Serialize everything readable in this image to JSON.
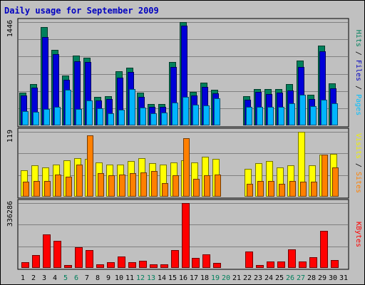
{
  "chart_data": {
    "type": "bar",
    "title": "Daily usage for September 2009",
    "grid": true,
    "categories": [
      "1",
      "2",
      "3",
      "4",
      "5",
      "6",
      "7",
      "8",
      "9",
      "10",
      "11",
      "12",
      "13",
      "14",
      "15",
      "16",
      "17",
      "18",
      "19",
      "20",
      "21",
      "22",
      "23",
      "24",
      "25",
      "26",
      "27",
      "28",
      "29",
      "30",
      "31"
    ],
    "weekend_days": [
      5,
      6,
      12,
      13,
      19,
      20,
      26,
      27
    ],
    "panels": [
      {
        "id": "hits",
        "y_max_label": "1446",
        "ymax": 1446,
        "right_labels": [
          {
            "text": "Hits",
            "color": "#00805c"
          },
          {
            "text": " / ",
            "color": "#000000"
          },
          {
            "text": "Files",
            "color": "#0000c0"
          },
          {
            "text": " / ",
            "color": "#000000"
          },
          {
            "text": "Pages",
            "color": "#00c0ff"
          }
        ],
        "series": [
          {
            "name": "Hits",
            "color": "#00805c",
            "values": [
              455,
              574,
              1376,
              1059,
              695,
              976,
              949,
              396,
              411,
              756,
              808,
              457,
              296,
              302,
              885,
              1446,
              472,
              595,
              499,
              0,
              0,
              406,
              513,
              506,
              513,
              581,
              911,
              424,
              1115,
              590,
              0
            ]
          },
          {
            "name": "Files",
            "color": "#0000d8",
            "values": [
              415,
              532,
              1240,
              996,
              637,
              901,
              892,
              349,
              369,
              672,
              751,
              402,
              258,
              263,
              821,
              1398,
              420,
              539,
              446,
              0,
              0,
              358,
              466,
              435,
              455,
              489,
              820,
              373,
              1039,
              514,
              0
            ]
          },
          {
            "name": "Pages",
            "color": "#00b4ff",
            "values": [
              196,
              193,
              226,
              257,
              500,
              226,
              349,
              236,
              170,
              223,
              512,
              254,
              173,
              182,
              315,
              400,
              288,
              276,
              377,
              0,
              0,
              264,
              263,
              264,
              264,
              311,
              424,
              272,
              360,
              314,
              0
            ]
          }
        ]
      },
      {
        "id": "visits",
        "y_max_label": "119",
        "ymax": 119,
        "right_labels": [
          {
            "text": "Visits",
            "color": "#f0f000"
          },
          {
            "text": " / ",
            "color": "#000000"
          },
          {
            "text": "Sites",
            "color": "#ff8000"
          }
        ],
        "series": [
          {
            "name": "Visits",
            "color": "#ffff00",
            "values": [
              49,
              57,
              53,
              59,
              67,
              71,
              69,
              63,
              59,
              59,
              65,
              71,
              61,
              59,
              63,
              67,
              63,
              73,
              69,
              0,
              0,
              51,
              61,
              65,
              53,
              57,
              119,
              57,
              77,
              79,
              0
            ]
          },
          {
            "name": "Sites",
            "color": "#ff8000",
            "values": [
              27,
              29,
              29,
              41,
              37,
              59,
              113,
              43,
              39,
              41,
              43,
              45,
              47,
              25,
              39,
              107,
              33,
              39,
              41,
              0,
              0,
              23,
              29,
              29,
              23,
              29,
              27,
              27,
              77,
              53,
              0
            ]
          }
        ]
      },
      {
        "id": "kbytes",
        "y_max_label": "336286",
        "ymax": 336286,
        "right_labels": [
          {
            "text": "KBytes",
            "color": "#ff0000"
          }
        ],
        "series": [
          {
            "name": "KBytes",
            "color": "#ff0000",
            "values": [
              30000,
              65000,
              172000,
              140000,
              16000,
              107000,
              93000,
              20000,
              30000,
              58000,
              30000,
              38000,
              18000,
              20000,
              92000,
              336286,
              50000,
              70000,
              27000,
              0,
              0,
              84000,
              14000,
              35000,
              35000,
              96000,
              32000,
              55000,
              192000,
              40000,
              0
            ]
          }
        ]
      }
    ]
  }
}
